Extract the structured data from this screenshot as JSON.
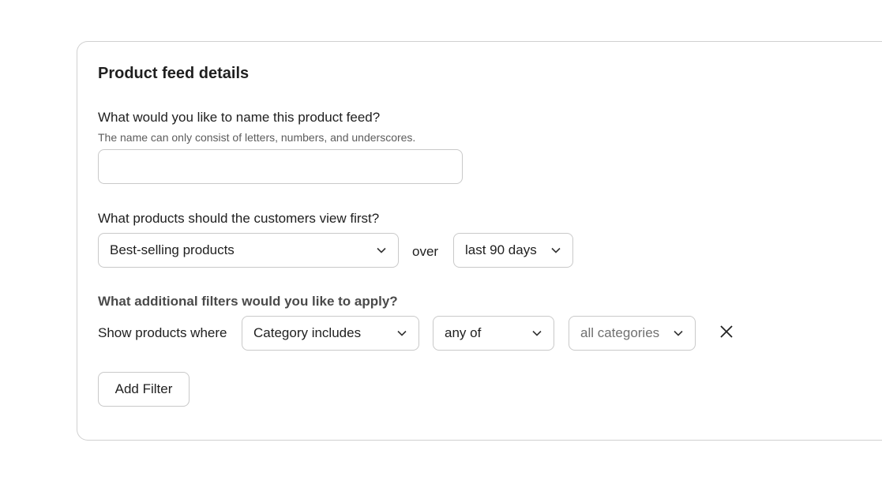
{
  "card": {
    "title": "Product feed details",
    "name_question": "What would you like to name this product feed?",
    "name_help": "The name can only consist of letters, numbers, and underscores.",
    "name_value": "",
    "order_question": "What products should the customers view first?",
    "order_select": "Best-selling products",
    "over_label": "over",
    "period_select": "last 90 days",
    "filters_question": "What additional filters would you like to apply?",
    "filter_prefix": "Show products where",
    "filter_field": "Category includes",
    "filter_operator": "any of",
    "filter_value": "all categories",
    "add_filter_label": "Add Filter"
  },
  "icons": {
    "dropdown": "chevron-down-icon",
    "remove": "close-icon"
  }
}
